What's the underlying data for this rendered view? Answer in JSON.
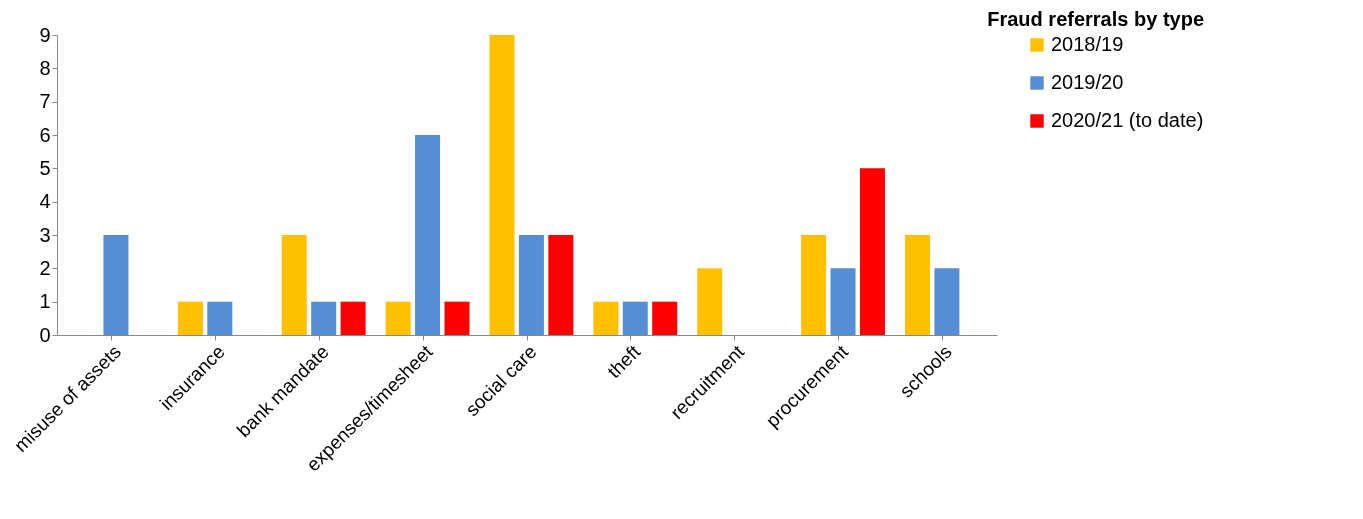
{
  "chart_data": {
    "type": "bar",
    "title": "Fraud referrals by type",
    "categories": [
      "misuse of assets",
      "insurance",
      "bank mandate",
      "expenses/timesheet",
      "social care",
      "theft",
      "recruitment",
      "procurement",
      "schools"
    ],
    "series": [
      {
        "name": "2018/19",
        "color": "#ffc000",
        "values": [
          0,
          1,
          3,
          1,
          9,
          1,
          2,
          3,
          3
        ]
      },
      {
        "name": "2019/20",
        "color": "#558ed5",
        "values": [
          3,
          1,
          1,
          6,
          3,
          1,
          0,
          2,
          2
        ]
      },
      {
        "name": "2020/21 (to date)",
        "color": "#ff0000",
        "values": [
          0,
          0,
          1,
          1,
          3,
          1,
          0,
          5,
          0
        ]
      }
    ],
    "ylim": [
      0,
      9
    ],
    "yticks": [
      0,
      1,
      2,
      3,
      4,
      5,
      6,
      7,
      8,
      9
    ],
    "grid": false,
    "legend": "right"
  }
}
